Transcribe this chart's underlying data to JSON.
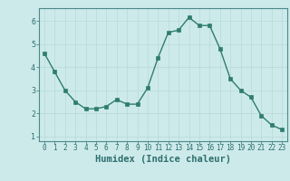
{
  "x": [
    0,
    1,
    2,
    3,
    4,
    5,
    6,
    7,
    8,
    9,
    10,
    11,
    12,
    13,
    14,
    15,
    16,
    17,
    18,
    19,
    20,
    21,
    22,
    23
  ],
  "y": [
    4.6,
    3.8,
    3.0,
    2.5,
    2.2,
    2.2,
    2.3,
    2.6,
    2.4,
    2.4,
    3.1,
    4.4,
    5.5,
    5.6,
    6.15,
    5.8,
    5.8,
    4.8,
    3.5,
    3.0,
    2.7,
    1.9,
    1.5,
    1.3
  ],
  "xlabel": "Humidex (Indice chaleur)",
  "line_color": "#2e7d6e",
  "marker_color": "#2e7d6e",
  "bg_color": "#cdeaea",
  "grid_color": "#b8d8d8",
  "axis_color": "#2e6e6e",
  "spine_color": "#4a8a8a",
  "xlim": [
    -0.5,
    23.5
  ],
  "ylim": [
    0.8,
    6.55
  ],
  "yticks": [
    1,
    2,
    3,
    4,
    5,
    6
  ],
  "xticks": [
    0,
    1,
    2,
    3,
    4,
    5,
    6,
    7,
    8,
    9,
    10,
    11,
    12,
    13,
    14,
    15,
    16,
    17,
    18,
    19,
    20,
    21,
    22,
    23
  ],
  "tick_fontsize": 5.5,
  "xlabel_fontsize": 7.5,
  "linewidth": 1.0,
  "markersize": 2.2
}
